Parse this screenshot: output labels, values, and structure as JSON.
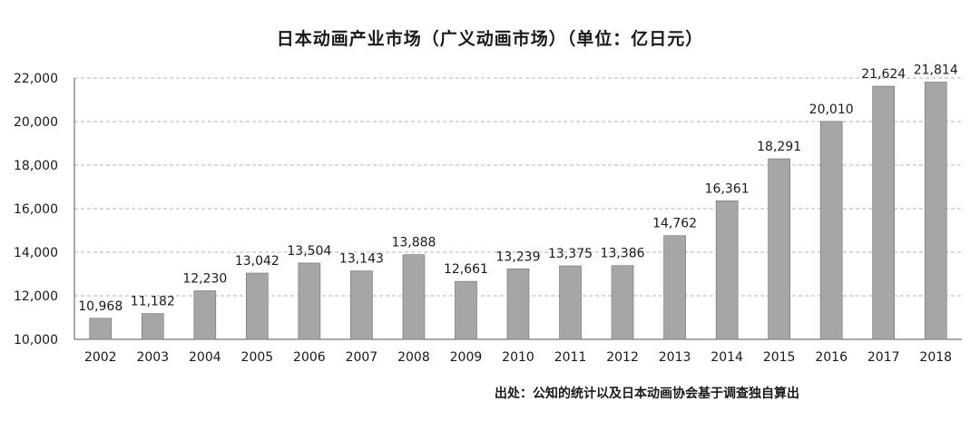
{
  "chart_data": {
    "type": "bar",
    "title": "日本动画产业市场（广义动画市场）（单位：亿日元）",
    "source": "出处：公知的统计以及日本动画协会基于调查独自算出",
    "xlabel": "",
    "ylabel": "",
    "ylim": [
      10000,
      22000
    ],
    "yticks": [
      "10,000",
      "12,000",
      "14,000",
      "16,000",
      "18,000",
      "20,000",
      "22,000"
    ],
    "ytick_values": [
      10000,
      12000,
      14000,
      16000,
      18000,
      20000,
      22000
    ],
    "grid": true,
    "categories": [
      "2002",
      "2003",
      "2004",
      "2005",
      "2006",
      "2007",
      "2008",
      "2009",
      "2010",
      "2011",
      "2012",
      "2013",
      "2014",
      "2015",
      "2016",
      "2017",
      "2018"
    ],
    "values": [
      10968,
      11182,
      12230,
      13042,
      13504,
      13143,
      13888,
      12661,
      13239,
      13375,
      13386,
      14762,
      16361,
      18291,
      20010,
      21624,
      21814
    ],
    "labels": [
      "10,968",
      "11,182",
      "12,230",
      "13,042",
      "13,504",
      "13,143",
      "13,888",
      "12,661",
      "13,239",
      "13,375",
      "13,386",
      "14,762",
      "16,361",
      "18,291",
      "20,010",
      "21,624",
      "21,814"
    ],
    "colors": {
      "bar": "#a6a6a6",
      "bar_edge": "#6e6e6e",
      "grid": "#b5b5b5",
      "axis": "#555555"
    }
  }
}
